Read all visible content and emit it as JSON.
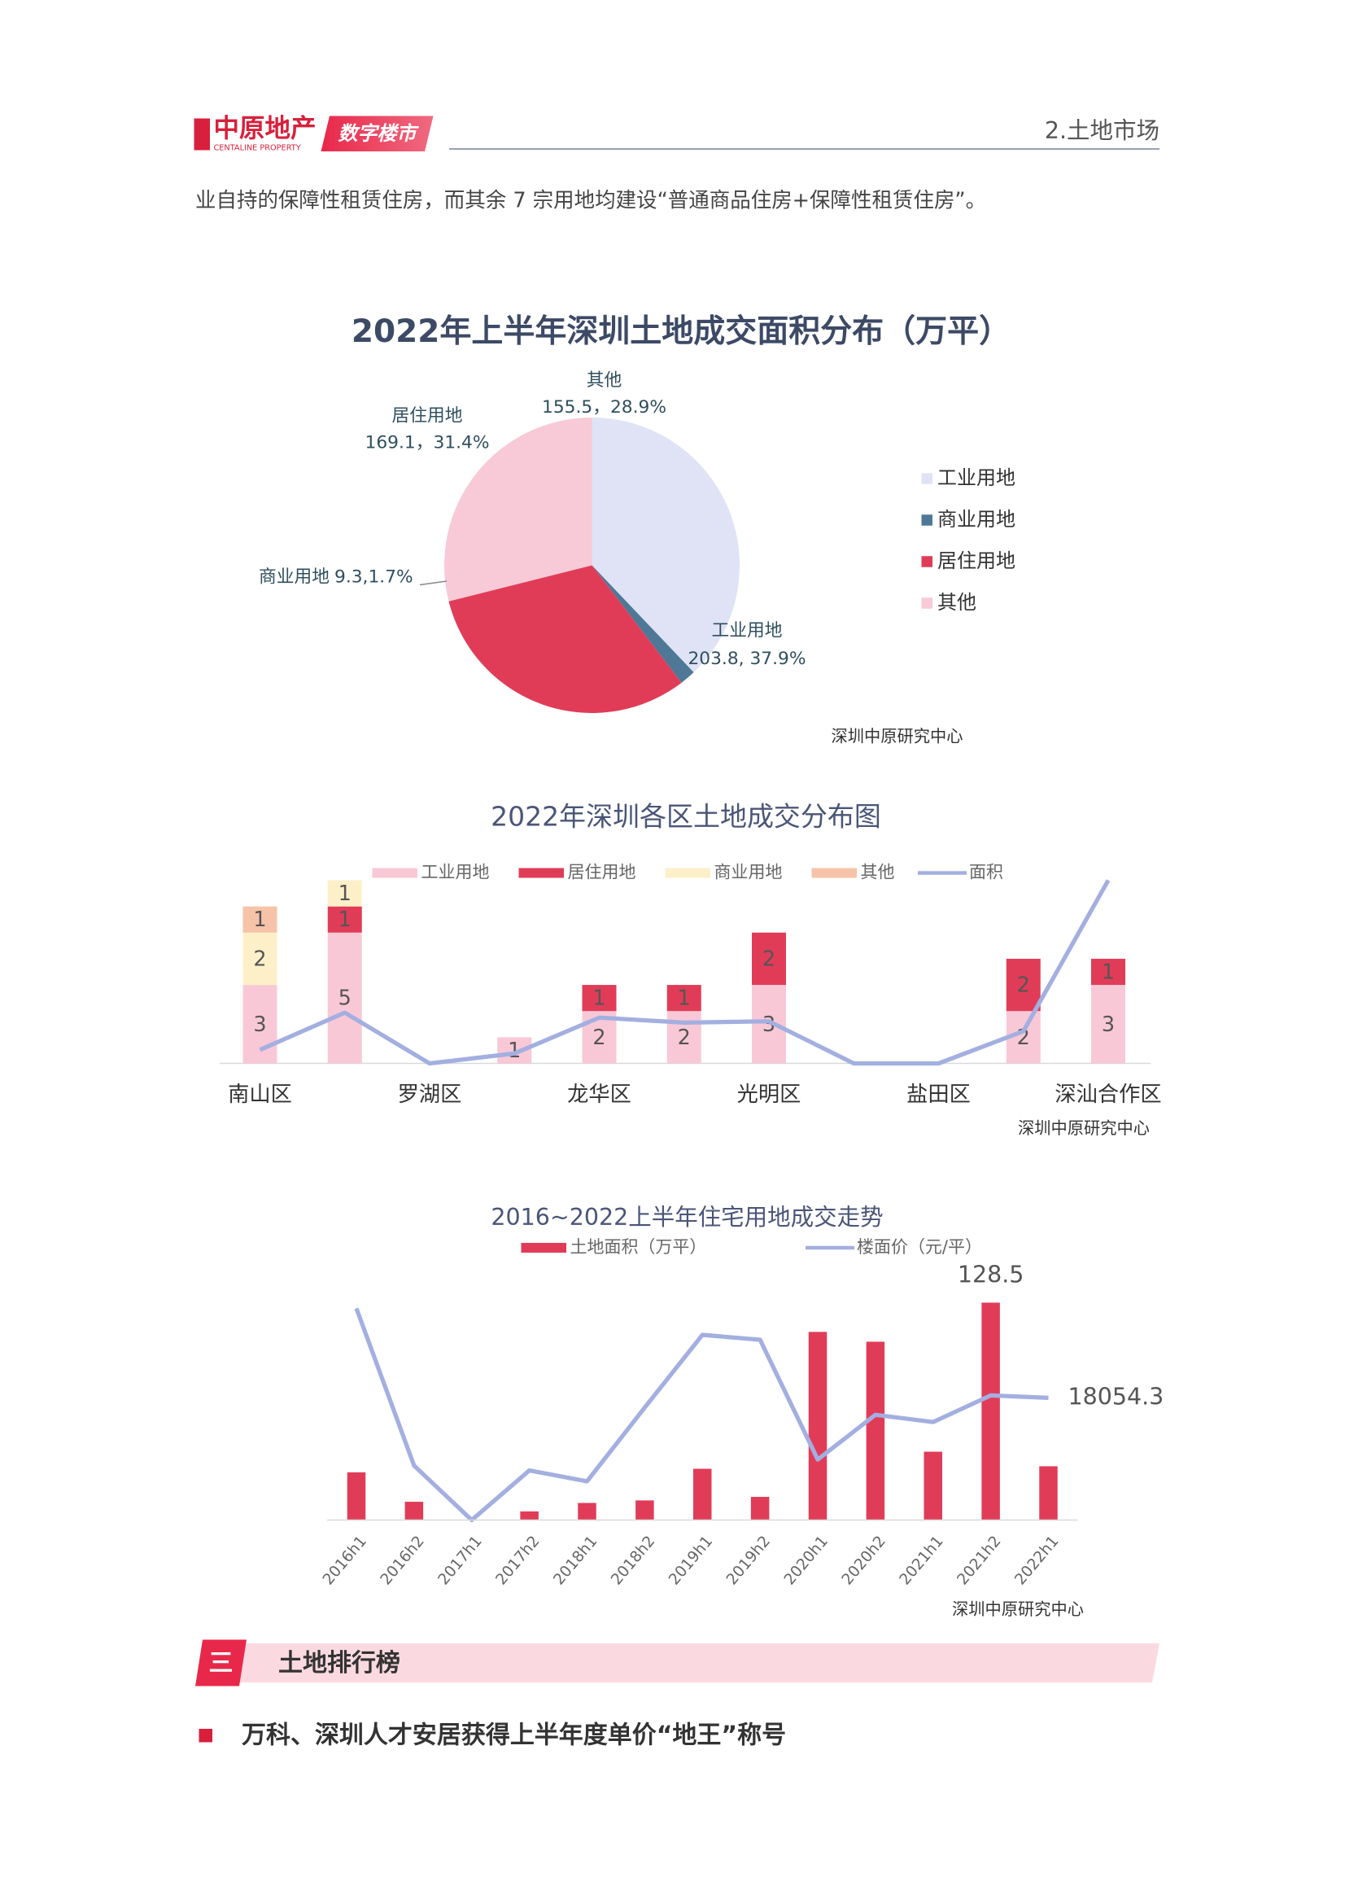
{
  "header": {
    "logo": "中原地产",
    "logo_en": "CENTALINE PROPERTY",
    "tag": "数字楼市",
    "section": "2.土地市场"
  },
  "intro": "业自持的保障性租赁住房，而其余 7 宗用地均建设“普通商品住房+保障性租赁住房”。",
  "chart_data": [
    {
      "type": "pie",
      "title": "2022年上半年深圳土地成交面积分布（万平）",
      "categories": [
        "工业用地",
        "商业用地",
        "居住用地",
        "其他"
      ],
      "values": [
        203.8,
        9.3,
        169.1,
        155.5
      ],
      "value_labels": [
        "203.8, 37.9%",
        "9.3,1.7%",
        "169.1，31.4%",
        "155.5，28.9%"
      ],
      "colors": [
        "#dfe3f5",
        "#4e7896",
        "#e03c58",
        "#f8c9d6"
      ],
      "legend": "right",
      "source": "深圳中原研究中心"
    },
    {
      "type": "stacked-bar-line",
      "title": "2022年深圳各区土地成交分布图",
      "categories": [
        "南山区",
        null,
        "罗湖区",
        null,
        "龙华区",
        null,
        "光明区",
        null,
        "盐田区",
        null,
        "深汕合作区"
      ],
      "ylim": [
        0,
        7
      ],
      "y2lim": [
        0,
        70
      ],
      "series": [
        {
          "name": "工业用地",
          "color": "#f9c8d6",
          "values": [
            3,
            5,
            null,
            1,
            2,
            2,
            3,
            null,
            null,
            2,
            3
          ]
        },
        {
          "name": "居住用地",
          "color": "#e03c58",
          "values": [
            null,
            1,
            null,
            null,
            1,
            1,
            2,
            null,
            null,
            2,
            1
          ]
        },
        {
          "name": "商业用地",
          "color": "#fdf0c8",
          "values": [
            2,
            1,
            null,
            null,
            null,
            null,
            null,
            null,
            null,
            null,
            null
          ]
        },
        {
          "name": "其他",
          "color": "#f6c3a8",
          "values": [
            1,
            null,
            null,
            null,
            null,
            null,
            null,
            null,
            null,
            null,
            null
          ]
        },
        {
          "name": "面积",
          "color": "#a3afe0",
          "axis": "y2",
          "kind": "line",
          "values": [
            5.2,
            19.4,
            0,
            3.8,
            17.5,
            15.6,
            16.1,
            0,
            0,
            12.3,
            70
          ]
        }
      ],
      "legend": "top",
      "source": "深圳中原研究中心"
    },
    {
      "type": "bar-line",
      "title": "2016~2022上半年住宅用地成交走势",
      "categories": [
        "2016h1",
        "2016h2",
        "2017h1",
        "2017h2",
        "2018h1",
        "2018h2",
        "2019h1",
        "2019h2",
        "2020h1",
        "2020h2",
        "2021h1",
        "2021h2",
        "2022h1"
      ],
      "ylim": [
        0,
        140
      ],
      "y2lim": [
        0,
        35000
      ],
      "series": [
        {
          "name": "土地面积（万平）",
          "color": "#e03c58",
          "kind": "bar",
          "values": [
            28.2,
            10.8,
            0,
            5.1,
            10.1,
            11.6,
            30.3,
            13.7,
            111.2,
            105.4,
            40.4,
            128.5,
            31.8
          ],
          "value_labels": [
            null,
            null,
            null,
            null,
            null,
            null,
            null,
            null,
            null,
            null,
            null,
            "128.5",
            null
          ]
        },
        {
          "name": "楼面价（元/平）",
          "color": "#a3afe0",
          "kind": "line",
          "axis": "y2",
          "values": [
            31290,
            8046,
            0,
            7330,
            5722,
            16628,
            27356,
            26641,
            8940,
            15555,
            14483,
            18416,
            18054.3
          ],
          "value_labels": [
            null,
            null,
            null,
            null,
            null,
            null,
            null,
            null,
            null,
            null,
            null,
            null,
            "18054.3"
          ]
        }
      ],
      "legend": "top",
      "source": "深圳中原研究中心"
    }
  ],
  "section": {
    "number": "三",
    "title": "土地排行榜"
  },
  "bullet": "万科、深圳人才安居获得上半年度单价“地王”称号"
}
